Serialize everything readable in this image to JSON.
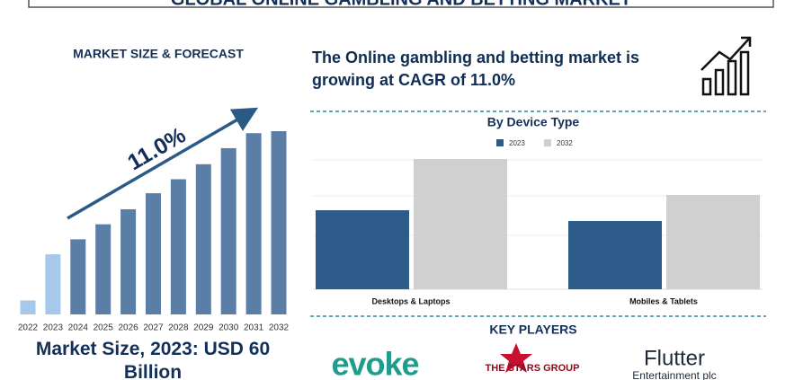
{
  "title": "GLOBAL ONLINE GAMBLING AND BETTING MARKET",
  "chart_data": [
    {
      "type": "bar",
      "title": "MARKET SIZE & FORECAST",
      "categories": [
        "2022",
        "2023",
        "2024",
        "2025",
        "2026",
        "2027",
        "2028",
        "2029",
        "2030",
        "2031",
        "2032"
      ],
      "values": [
        14,
        60,
        75,
        90,
        105,
        121,
        135,
        150,
        166,
        181,
        183
      ],
      "colors": [
        "#a6c8ea",
        "#a6c8ea",
        "#5b7ea6",
        "#5b7ea6",
        "#5b7ea6",
        "#5b7ea6",
        "#5b7ea6",
        "#5b7ea6",
        "#5b7ea6",
        "#5b7ea6",
        "#5b7ea6"
      ],
      "annotation": "11.0%",
      "subtitle": "Market Size, 2023: USD 60 Billion"
    },
    {
      "type": "grouped-bar",
      "title": "By Device Type",
      "categories": [
        "Desktops & Laptops",
        "Mobiles & Tablets"
      ],
      "series": [
        {
          "name": "2023",
          "color": "#2d5b8a",
          "values": [
            88,
            76
          ]
        },
        {
          "name": "2032",
          "color": "#d0d0d0",
          "values": [
            145,
            105
          ]
        }
      ]
    }
  ],
  "headline": "The Online gambling and betting market is growing at CAGR of 11.0%",
  "key_players": {
    "title": "KEY PLAYERS",
    "logos": [
      "evoke",
      "THE STARS GROUP",
      "Flutter",
      "Entertainment plc"
    ]
  }
}
